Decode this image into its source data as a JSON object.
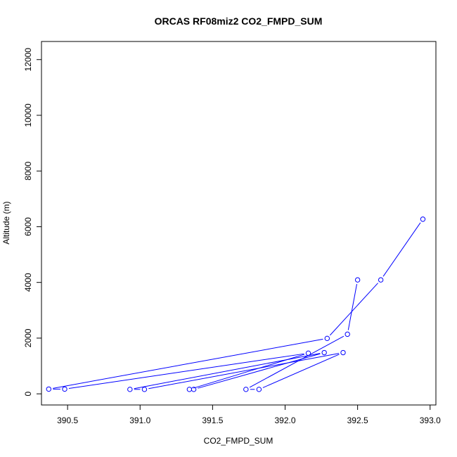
{
  "chart_data": {
    "type": "line",
    "title": "ORCAS RF08miz2 CO2_FMPD_SUM",
    "xlabel": "CO2_FMPD_SUM",
    "ylabel": "Altitude (m)",
    "xlim": [
      390.32,
      393.04
    ],
    "ylim": [
      -400,
      12650
    ],
    "x_ticks": [
      390.5,
      391.0,
      391.5,
      392.0,
      392.5,
      393.0
    ],
    "x_tick_labels": [
      "390.5",
      "391.0",
      "391.5",
      "392.0",
      "392.5",
      "393.0"
    ],
    "y_ticks": [
      0,
      2000,
      4000,
      6000,
      8000,
      10000,
      12000
    ],
    "y_tick_labels": [
      "0",
      "2000",
      "4000",
      "6000",
      "8000",
      "10000",
      "12000"
    ],
    "grid": false,
    "series": [
      {
        "color": "#0000ff",
        "marker": "open-circle",
        "points": [
          {
            "x": 392.95,
            "y": 6270
          },
          {
            "x": 392.66,
            "y": 4090
          },
          {
            "x": 392.29,
            "y": 1990
          },
          {
            "x": 390.37,
            "y": 170
          },
          {
            "x": 390.48,
            "y": 170
          },
          {
            "x": 392.16,
            "y": 1460
          },
          {
            "x": 391.34,
            "y": 160
          },
          {
            "x": 391.37,
            "y": 160
          },
          {
            "x": 392.27,
            "y": 1480
          },
          {
            "x": 390.93,
            "y": 160
          },
          {
            "x": 391.03,
            "y": 160
          },
          {
            "x": 392.4,
            "y": 1480
          },
          {
            "x": 391.82,
            "y": 160
          },
          {
            "x": 391.73,
            "y": 160
          },
          {
            "x": 392.43,
            "y": 2140
          },
          {
            "x": 392.5,
            "y": 4090
          }
        ]
      }
    ]
  }
}
